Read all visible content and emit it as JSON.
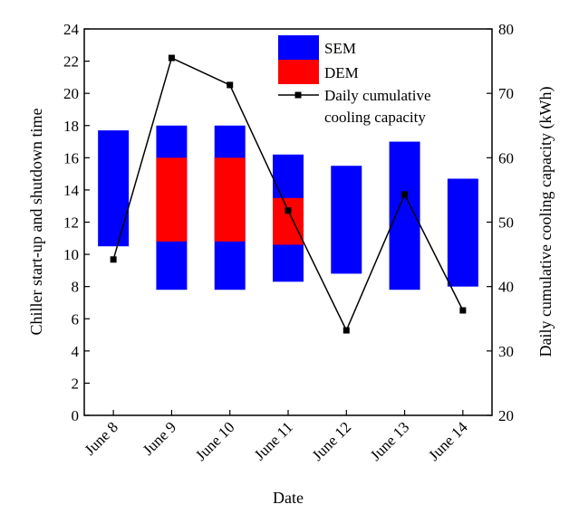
{
  "chart_data": {
    "type": "floating-bar-with-line",
    "categories": [
      "June 8",
      "June 9",
      "June 10",
      "June 11",
      "June 12",
      "June 13",
      "June 14"
    ],
    "xlabel": "Date",
    "ylabel_left": "Chiller start-up and shutdown time",
    "ylabel_right": "Daily cumulative  cooling capacity (kWh)",
    "ylim_left": [
      0,
      24
    ],
    "yticks_left": [
      0,
      2,
      4,
      6,
      8,
      10,
      12,
      14,
      16,
      18,
      20,
      22,
      24
    ],
    "ylim_right": [
      20,
      80
    ],
    "yticks_right": [
      20,
      30,
      40,
      50,
      60,
      70,
      80
    ],
    "sem_ranges": [
      [
        10.5,
        17.7
      ],
      [
        7.8,
        18.0
      ],
      [
        7.8,
        18.0
      ],
      [
        8.3,
        16.2
      ],
      [
        8.8,
        15.5
      ],
      [
        7.8,
        17.0
      ],
      [
        8.0,
        14.7
      ]
    ],
    "dem_ranges": [
      null,
      [
        10.8,
        16.0
      ],
      [
        10.8,
        16.0
      ],
      [
        10.6,
        13.5
      ],
      null,
      null,
      null
    ],
    "line_values": [
      44.2,
      75.5,
      71.3,
      51.8,
      33.2,
      54.3,
      36.3
    ],
    "legend": {
      "sem": "SEM",
      "dem": "DEM",
      "line_line1": "Daily cumulative",
      "line_line2": "cooling capacity",
      "placement": "top-right"
    },
    "colors": {
      "sem": "#0000ff",
      "dem": "#ff0000",
      "line": "#000000"
    }
  }
}
